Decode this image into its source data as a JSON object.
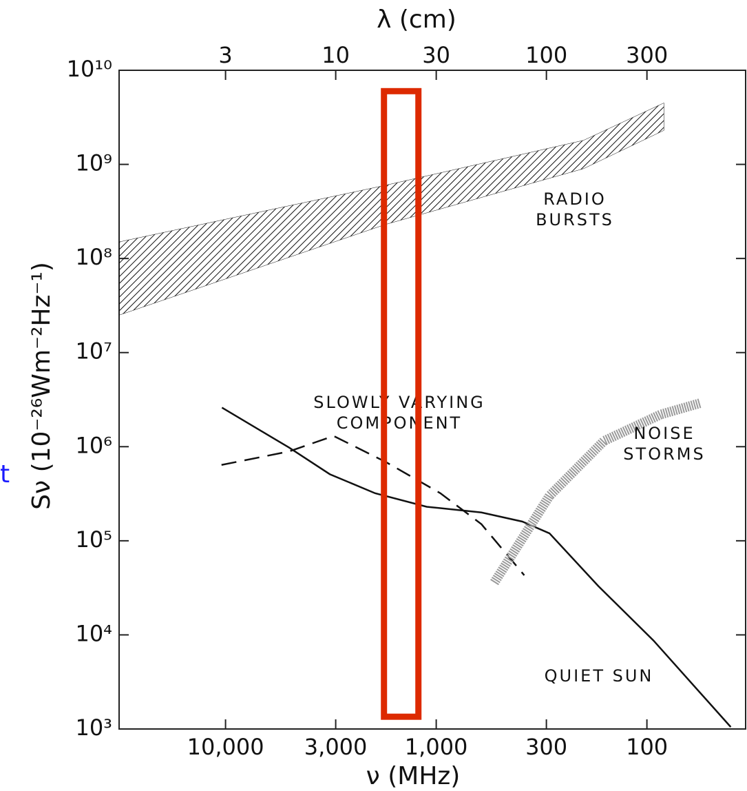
{
  "chart_data": {
    "type": "line",
    "xlabel": "ν (MHz)",
    "x2label": "λ (cm)",
    "ylabel": "Sν (10⁻²⁶Wm⁻²Hz⁻¹)",
    "xscale": "log",
    "yscale": "log",
    "xlim": [
      32000,
      34
    ],
    "xticks": [
      {
        "value": 10000,
        "label": "10,000"
      },
      {
        "value": 3000,
        "label": "3,000"
      },
      {
        "value": 1000,
        "label": "1,000"
      },
      300,
      100
    ],
    "x2lim": [
      0.9375,
      882
    ],
    "x2ticks": [
      3,
      10,
      30,
      100,
      300
    ],
    "ylim": [
      1000,
      10000000000
    ],
    "yticks": [
      {
        "value": 1000,
        "label": "10³"
      },
      {
        "value": 10000,
        "label": "10⁴"
      },
      {
        "value": 100000,
        "label": "10⁵"
      },
      {
        "value": 1000000,
        "label": "10⁶"
      },
      {
        "value": 10000000,
        "label": "10⁷"
      },
      {
        "value": 100000000,
        "label": "10⁸"
      },
      {
        "value": 1000000000,
        "label": "10⁹"
      },
      {
        "value": 10000000000,
        "label": "10¹⁰"
      }
    ],
    "series": [
      {
        "name": [
          "RADIO",
          "BURSTS"
        ],
        "style": "band",
        "color": "#111111",
        "x": [
          32000,
          1740,
          200,
          83
        ],
        "high": [
          150000000,
          600000000,
          1800000000,
          4500000000
        ],
        "low": [
          25000000,
          230000000,
          900000000,
          2300000000
        ]
      },
      {
        "name": [
          "SLOWLY VARYING",
          "COMPONENT"
        ],
        "style": "dashed",
        "color": "#111111",
        "x": [
          10450,
          5000,
          3070,
          1740,
          955,
          610,
          382
        ],
        "values": [
          640000,
          890000,
          1300000,
          690000,
          320000,
          150000,
          43000
        ]
      },
      {
        "name": [
          "QUIET SUN"
        ],
        "style": "solid",
        "color": "#111111",
        "x": [
          10400,
          5000,
          3200,
          1950,
          1110,
          610,
          390,
          290,
          170,
          93,
          40
        ],
        "values": [
          2600000,
          980000,
          510000,
          320000,
          230000,
          200000,
          160000,
          120000,
          33000,
          8700,
          1050
        ]
      },
      {
        "name": [
          "NOISE",
          "STORMS"
        ],
        "style": "thick",
        "color": "#9a9a9a",
        "x": [
          530,
          290,
          160,
          86,
          56
        ],
        "values": [
          36000,
          300000,
          1150000,
          2200000,
          2900000
        ]
      }
    ],
    "highlight": {
      "x": [
        1770,
        1215
      ],
      "y": [
        6000000000,
        1350
      ],
      "color": "#dd2a00"
    },
    "side_text": {
      "text": "t",
      "color": "#1a1aff"
    }
  }
}
